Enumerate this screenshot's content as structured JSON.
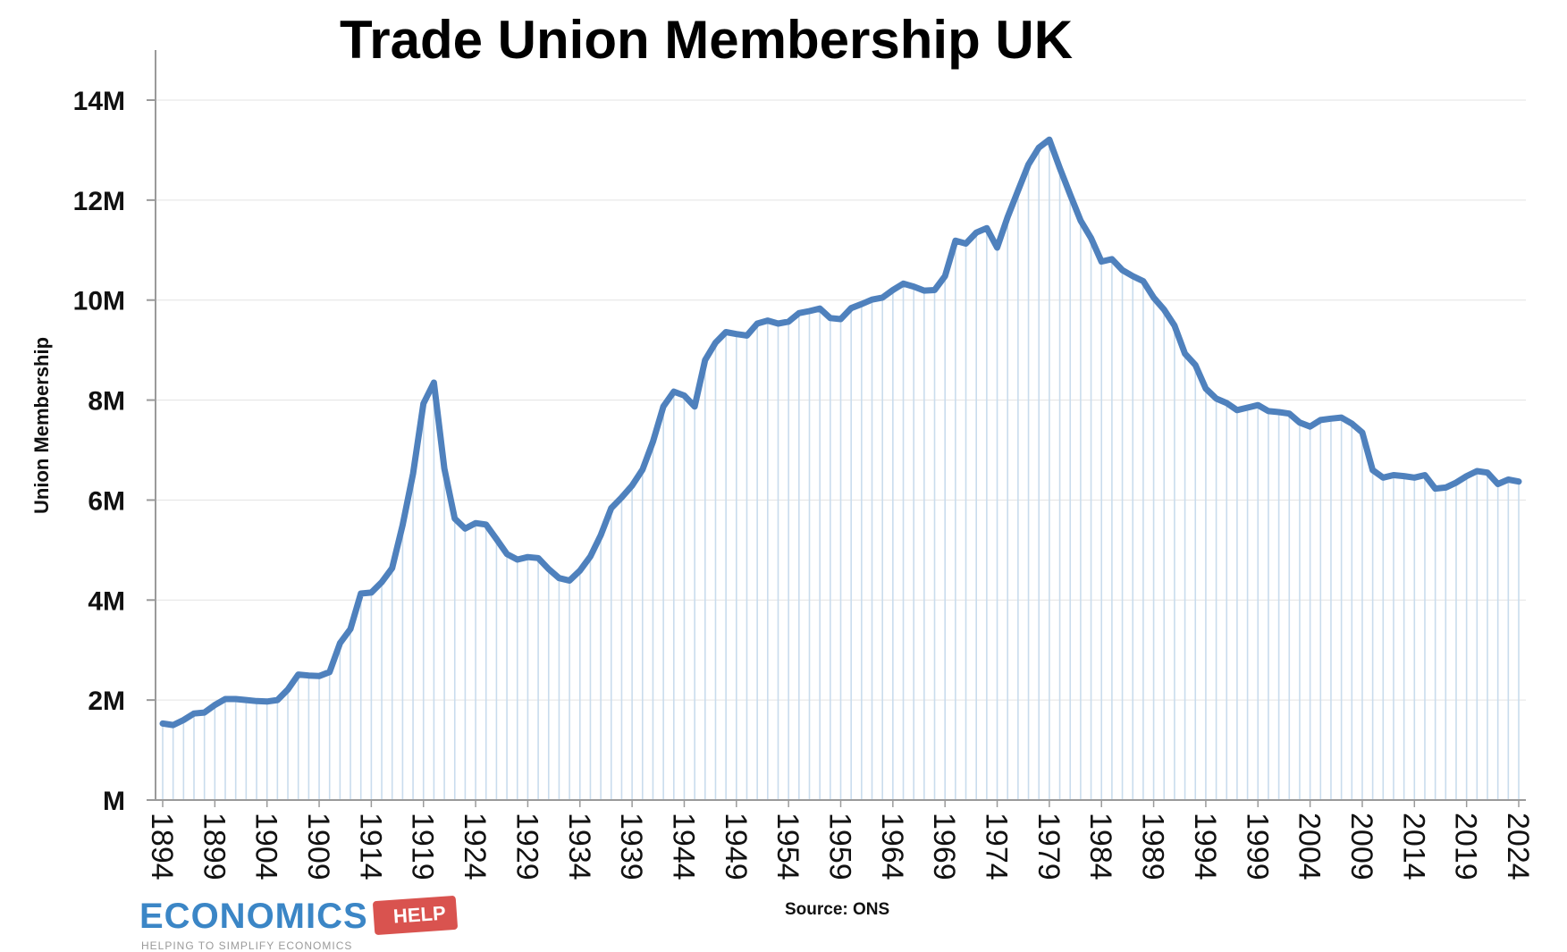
{
  "chart_data": {
    "type": "area",
    "title": "Trade Union Membership UK",
    "xlabel": "",
    "ylabel": "Union Membership",
    "ylim": [
      0,
      14
    ],
    "y_ticks": [
      "M",
      "2M",
      "4M",
      "6M",
      "8M",
      "10M",
      "12M",
      "14M"
    ],
    "y_tick_values": [
      0,
      2,
      4,
      6,
      8,
      10,
      12,
      14
    ],
    "x_ticks": [
      1894,
      1899,
      1904,
      1909,
      1914,
      1919,
      1924,
      1929,
      1934,
      1939,
      1944,
      1949,
      1954,
      1959,
      1964,
      1969,
      1974,
      1979,
      1984,
      1989,
      1994,
      1999,
      2004,
      2009,
      2014,
      2019,
      2024
    ],
    "xlim": [
      1894,
      2024
    ],
    "grid": true,
    "line_color": "#4f81bd",
    "fill_line_color": "#c9dced",
    "series": [
      {
        "x": [
          1894,
          1895,
          1896,
          1897,
          1898,
          1899,
          1900,
          1901,
          1902,
          1903,
          1904,
          1905,
          1906,
          1907,
          1908,
          1909,
          1910,
          1911,
          1912,
          1913,
          1914,
          1915,
          1916,
          1917,
          1918,
          1919,
          1920,
          1921,
          1922,
          1923,
          1924,
          1925,
          1926,
          1927,
          1928,
          1929,
          1930,
          1931,
          1932,
          1933,
          1934,
          1935,
          1936,
          1937,
          1938,
          1939,
          1940,
          1941,
          1942,
          1943,
          1944,
          1945,
          1946,
          1947,
          1948,
          1949,
          1950,
          1951,
          1952,
          1953,
          1954,
          1955,
          1956,
          1957,
          1958,
          1959,
          1960,
          1961,
          1962,
          1963,
          1964,
          1965,
          1966,
          1967,
          1968,
          1969,
          1970,
          1971,
          1972,
          1973,
          1974,
          1975,
          1976,
          1977,
          1978,
          1979,
          1980,
          1981,
          1982,
          1983,
          1984,
          1985,
          1986,
          1987,
          1988,
          1989,
          1990,
          1991,
          1992,
          1993,
          1994,
          1995,
          1996,
          1997,
          1998,
          1999,
          2000,
          2001,
          2002,
          2003,
          2004,
          2005,
          2006,
          2007,
          2008,
          2009,
          2010,
          2011,
          2012,
          2013,
          2014,
          2015,
          2016,
          2017,
          2018,
          2019,
          2020,
          2021,
          2022,
          2023,
          2024
        ],
        "values": [
          1.53,
          1.5,
          1.6,
          1.73,
          1.75,
          1.9,
          2.02,
          2.02,
          2.0,
          1.98,
          1.97,
          2.0,
          2.21,
          2.51,
          2.49,
          2.48,
          2.56,
          3.14,
          3.42,
          4.13,
          4.15,
          4.36,
          4.64,
          5.5,
          6.53,
          7.93,
          8.35,
          6.63,
          5.63,
          5.43,
          5.54,
          5.51,
          5.22,
          4.92,
          4.81,
          4.86,
          4.84,
          4.62,
          4.44,
          4.39,
          4.59,
          4.87,
          5.3,
          5.84,
          6.05,
          6.29,
          6.61,
          7.17,
          7.87,
          8.17,
          8.09,
          7.87,
          8.8,
          9.15,
          9.36,
          9.32,
          9.29,
          9.53,
          9.59,
          9.53,
          9.57,
          9.74,
          9.78,
          9.83,
          9.64,
          9.62,
          9.84,
          9.92,
          10.01,
          10.05,
          10.2,
          10.33,
          10.27,
          10.19,
          10.2,
          10.48,
          11.19,
          11.13,
          11.35,
          11.44,
          11.05,
          11.66,
          12.19,
          12.71,
          13.05,
          13.21,
          12.64,
          12.11,
          11.59,
          11.24,
          10.77,
          10.82,
          10.6,
          10.48,
          10.38,
          10.05,
          9.81,
          9.49,
          8.93,
          8.7,
          8.23,
          8.03,
          7.94,
          7.8,
          7.85,
          7.9,
          7.78,
          7.76,
          7.73,
          7.55,
          7.47,
          7.6,
          7.63,
          7.65,
          7.53,
          7.35,
          6.6,
          6.45,
          6.5,
          6.48,
          6.45,
          6.5,
          6.23,
          6.25,
          6.35,
          6.48,
          6.58,
          6.55,
          6.32,
          6.41,
          6.37
        ]
      }
    ]
  },
  "source_note": "Source: ONS",
  "logo": {
    "word": "ECONOMICS",
    "tag": "HELP",
    "tagline": "HELPING TO SIMPLIFY ECONOMICS",
    "brand_blue": "#3b86c6",
    "brand_red": "#d9534f"
  }
}
